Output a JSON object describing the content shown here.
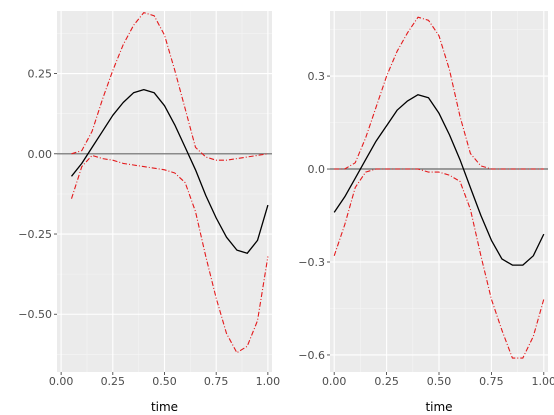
{
  "chart_data": [
    {
      "type": "line",
      "title": "",
      "xlabel": "time",
      "ylabel": "",
      "xlim": [
        -0.02,
        1.02
      ],
      "ylim": [
        -0.68,
        0.445
      ],
      "xticks": [
        0.0,
        0.25,
        0.5,
        0.75,
        1.0
      ],
      "xtick_labels": [
        "0.00",
        "0.25",
        "0.50",
        "0.75",
        "1.00"
      ],
      "yticks": [
        -0.5,
        -0.25,
        0.0,
        0.25
      ],
      "ytick_labels": [
        "-0.50",
        "-0.25",
        "0.00",
        "0.25"
      ],
      "hline": 0,
      "grid": true,
      "series": [
        {
          "role": "estimate",
          "color": "#000000",
          "style": "solid",
          "x": [
            0.05,
            0.1,
            0.15,
            0.2,
            0.25,
            0.3,
            0.35,
            0.4,
            0.45,
            0.5,
            0.55,
            0.6,
            0.65,
            0.7,
            0.75,
            0.8,
            0.85,
            0.9,
            0.95,
            1.0
          ],
          "y": [
            -0.07,
            -0.03,
            0.02,
            0.07,
            0.12,
            0.16,
            0.19,
            0.2,
            0.19,
            0.15,
            0.09,
            0.02,
            -0.05,
            -0.13,
            -0.2,
            -0.26,
            -0.3,
            -0.31,
            -0.27,
            -0.16
          ]
        },
        {
          "role": "upper",
          "color": "#e41a1c",
          "style": "dashdot",
          "x": [
            0.05,
            0.1,
            0.15,
            0.2,
            0.25,
            0.3,
            0.35,
            0.4,
            0.45,
            0.5,
            0.55,
            0.6,
            0.65,
            0.7,
            0.75,
            0.8,
            0.85,
            0.9,
            0.95,
            1.0
          ],
          "y": [
            0.0,
            0.01,
            0.07,
            0.17,
            0.26,
            0.34,
            0.4,
            0.44,
            0.43,
            0.37,
            0.26,
            0.14,
            0.02,
            -0.01,
            -0.02,
            -0.02,
            -0.015,
            -0.01,
            -0.005,
            0.0
          ]
        },
        {
          "role": "lower",
          "color": "#e41a1c",
          "style": "dashdot",
          "x": [
            0.05,
            0.1,
            0.15,
            0.2,
            0.25,
            0.3,
            0.35,
            0.4,
            0.45,
            0.5,
            0.55,
            0.6,
            0.65,
            0.7,
            0.75,
            0.8,
            0.85,
            0.9,
            0.95,
            1.0
          ],
          "y": [
            -0.14,
            -0.04,
            -0.005,
            -0.015,
            -0.02,
            -0.03,
            -0.035,
            -0.04,
            -0.045,
            -0.05,
            -0.06,
            -0.09,
            -0.18,
            -0.32,
            -0.45,
            -0.56,
            -0.62,
            -0.6,
            -0.52,
            -0.32
          ]
        }
      ]
    },
    {
      "type": "line",
      "title": "",
      "xlabel": "time",
      "ylabel": "",
      "xlim": [
        -0.02,
        1.02
      ],
      "ylim": [
        -0.655,
        0.51
      ],
      "xticks": [
        0.0,
        0.25,
        0.5,
        0.75,
        1.0
      ],
      "xtick_labels": [
        "0.00",
        "0.25",
        "0.50",
        "0.75",
        "1.00"
      ],
      "yticks": [
        -0.6,
        -0.3,
        0.0,
        0.3
      ],
      "ytick_labels": [
        "-0.6",
        "-0.3",
        "0.0",
        "0.3"
      ],
      "hline": 0,
      "grid": true,
      "series": [
        {
          "role": "estimate",
          "color": "#000000",
          "style": "solid",
          "x": [
            0.0,
            0.05,
            0.1,
            0.15,
            0.2,
            0.25,
            0.3,
            0.35,
            0.4,
            0.45,
            0.5,
            0.55,
            0.6,
            0.65,
            0.7,
            0.75,
            0.8,
            0.85,
            0.9,
            0.95,
            1.0
          ],
          "y": [
            -0.14,
            -0.09,
            -0.03,
            0.03,
            0.09,
            0.14,
            0.19,
            0.22,
            0.24,
            0.23,
            0.18,
            0.11,
            0.03,
            -0.06,
            -0.15,
            -0.23,
            -0.29,
            -0.31,
            -0.31,
            -0.28,
            -0.21
          ]
        },
        {
          "role": "upper",
          "color": "#e41a1c",
          "style": "dashdot",
          "x": [
            0.0,
            0.05,
            0.1,
            0.15,
            0.2,
            0.25,
            0.3,
            0.35,
            0.4,
            0.45,
            0.5,
            0.55,
            0.6,
            0.65,
            0.7,
            0.75,
            0.8,
            0.85,
            0.9,
            0.95,
            1.0
          ],
          "y": [
            0.0,
            0.0,
            0.02,
            0.1,
            0.2,
            0.3,
            0.38,
            0.44,
            0.49,
            0.48,
            0.43,
            0.32,
            0.17,
            0.05,
            0.01,
            0.0,
            0.0,
            0.0,
            0.0,
            0.0,
            0.0
          ],
          "note": ""
        },
        {
          "role": "lower",
          "color": "#e41a1c",
          "style": "dashdot",
          "x": [
            0.0,
            0.05,
            0.1,
            0.15,
            0.2,
            0.25,
            0.3,
            0.35,
            0.4,
            0.45,
            0.5,
            0.55,
            0.6,
            0.65,
            0.7,
            0.75,
            0.8,
            0.85,
            0.9,
            0.95,
            1.0
          ],
          "y": [
            -0.28,
            -0.18,
            -0.06,
            -0.01,
            0.0,
            0.0,
            0.0,
            0.0,
            0.0,
            -0.01,
            -0.01,
            -0.02,
            -0.04,
            -0.13,
            -0.28,
            -0.42,
            -0.52,
            -0.61,
            -0.61,
            -0.54,
            -0.42
          ]
        }
      ]
    }
  ]
}
